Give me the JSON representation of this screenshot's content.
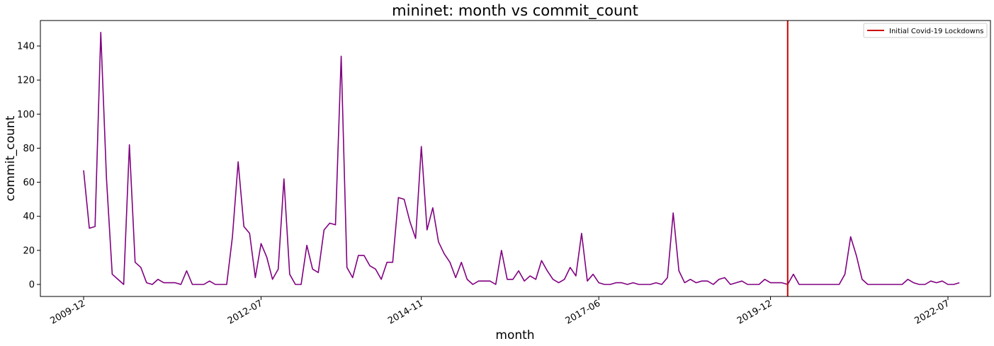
{
  "chart_data": {
    "type": "line",
    "title": "mininet: month vs commit_count",
    "xlabel": "month",
    "ylabel": "commit_count",
    "x_start": "2009-12",
    "x_ticks": [
      "2009-12",
      "2012-07",
      "2014-11",
      "2017-06",
      "2019-12",
      "2022-07"
    ],
    "y_ticks": [
      0,
      20,
      40,
      60,
      80,
      100,
      120,
      140
    ],
    "ylim": [
      -7,
      155
    ],
    "grid": false,
    "legend_position": "top-right",
    "series": [
      {
        "name": "",
        "color": "#800080",
        "values": [
          67,
          33,
          34,
          148,
          62,
          6,
          3,
          0,
          82,
          13,
          10,
          1,
          0,
          3,
          1,
          1,
          1,
          0,
          8,
          0,
          0,
          0,
          2,
          0,
          0,
          0,
          28,
          72,
          34,
          30,
          4,
          24,
          16,
          3,
          9,
          62,
          6,
          0,
          0,
          23,
          9,
          7,
          32,
          36,
          35,
          134,
          10,
          4,
          17,
          17,
          11,
          9,
          3,
          13,
          13,
          51,
          50,
          37,
          27,
          81,
          32,
          45,
          25,
          18,
          13,
          4,
          13,
          3,
          0,
          2,
          2,
          2,
          0,
          20,
          3,
          3,
          8,
          2,
          5,
          3,
          14,
          8,
          3,
          1,
          3,
          10,
          5,
          30,
          2,
          6,
          1,
          0,
          0,
          1,
          1,
          0,
          1,
          0,
          0,
          0,
          1,
          0,
          4,
          42,
          8,
          1,
          3,
          1,
          2,
          2,
          0,
          3,
          4,
          0,
          1,
          2,
          0,
          0,
          0,
          3,
          1,
          1,
          1,
          0,
          6,
          0,
          0,
          0,
          0,
          0,
          0,
          0,
          0,
          6,
          28,
          17,
          3,
          0,
          0,
          0,
          0,
          0,
          0,
          0,
          3,
          1,
          0,
          0,
          2,
          1,
          2,
          0,
          0,
          1
        ]
      }
    ],
    "annotations": [
      {
        "label": "Initial Covid-19 Lockdowns",
        "x": "2020-03",
        "color": "#cc0000"
      }
    ]
  }
}
